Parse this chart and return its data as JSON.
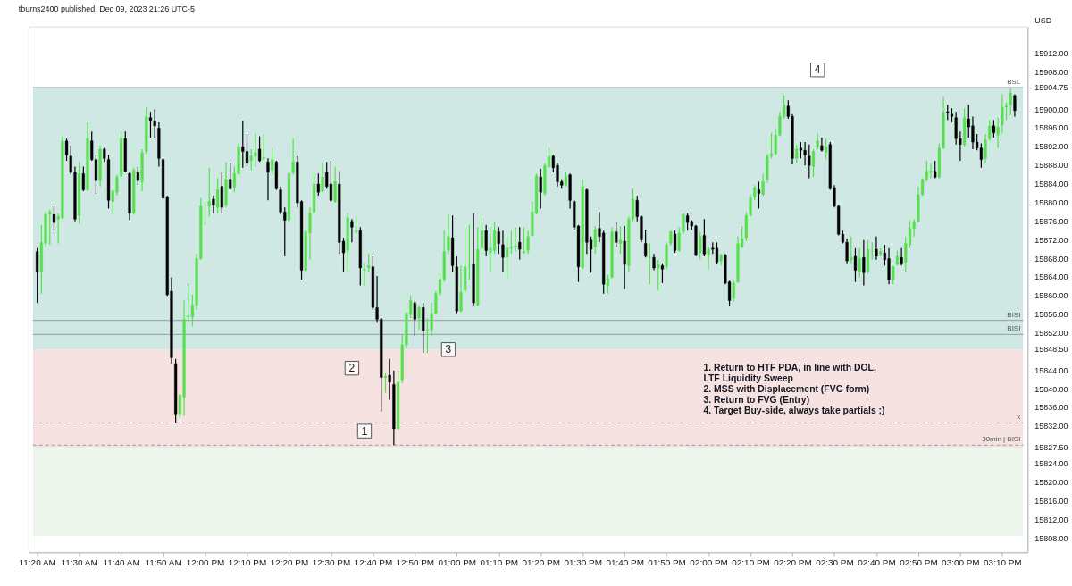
{
  "chart_data": {
    "type": "candlestick",
    "title": "tburns2400 published, Dec 09, 2023 21:26 UTC-5",
    "ylabel": "USD",
    "x": [
      11.3333,
      11.35,
      11.3667,
      11.3833,
      11.4,
      11.4167,
      11.4333,
      11.45,
      11.4667,
      11.4833,
      11.5,
      11.5167,
      11.5333,
      11.55,
      11.5667,
      11.5833,
      11.6,
      11.6167,
      11.6333,
      11.65,
      11.6667,
      11.6833,
      11.7,
      11.7167,
      11.7333,
      11.75,
      11.7667,
      11.7833,
      11.8,
      11.8167,
      11.8333,
      11.85,
      11.8667,
      11.8833,
      11.9,
      11.9167,
      11.9333,
      11.95,
      11.9667,
      11.9833,
      12,
      12.0167,
      12.0333,
      12.05,
      12.0667,
      12.0833,
      12.1,
      12.1167,
      12.1333,
      12.15,
      12.1667,
      12.1833,
      12.2,
      12.2167,
      12.2333,
      12.25,
      12.2667,
      12.2833,
      12.3,
      12.3167,
      12.3333,
      12.35,
      12.3667,
      12.3833,
      12.4,
      12.4167,
      12.4333,
      12.45,
      12.4667,
      12.4833,
      12.5,
      12.5167,
      12.5333,
      12.55,
      12.5667,
      12.5833,
      12.6,
      12.6167,
      12.6333,
      12.65,
      12.6667,
      12.6833,
      12.7,
      12.7167,
      12.7333,
      12.75,
      12.7667,
      12.7833,
      12.8,
      12.8167,
      12.8333,
      12.85,
      12.8667,
      12.8833,
      12.9,
      12.9167,
      12.9333,
      12.95,
      12.9667,
      12.9833,
      13,
      13.0167,
      13.0333,
      13.05,
      13.0667,
      13.0833,
      13.1,
      13.1167,
      13.1333,
      13.15,
      13.1667,
      13.1833,
      13.2,
      13.2167,
      13.2333,
      13.25,
      13.2667,
      13.2833,
      13.3,
      13.3167,
      13.3333,
      13.35,
      13.3667,
      13.3833,
      13.4,
      13.4167,
      13.4333,
      13.45,
      13.4667,
      13.4833,
      13.5,
      13.5167,
      13.5333,
      13.55,
      13.5667,
      13.5833,
      13.6,
      13.6167,
      13.6333,
      13.65,
      13.6667,
      13.6833,
      13.7,
      13.7167,
      13.7333,
      13.75,
      13.7667,
      13.7833,
      13.8,
      13.8167,
      13.8333,
      13.85,
      13.8667,
      13.8833,
      13.9,
      13.9167,
      13.9333,
      13.95,
      13.9667,
      13.9833,
      14,
      14.0167,
      14.0333,
      14.05,
      14.0667,
      14.0833,
      14.1,
      14.1167,
      14.1333,
      14.15,
      14.1667,
      14.1833,
      14.2,
      14.2167,
      14.2333,
      14.25,
      14.2667,
      14.2833,
      14.3,
      14.3167,
      14.3333,
      14.35,
      14.3667,
      14.3833,
      14.4,
      14.4167,
      14.4333,
      14.45,
      14.4667,
      14.4833,
      14.5,
      14.5167,
      14.5333,
      14.55,
      14.5667,
      14.5833,
      14.6,
      14.6167,
      14.6333,
      14.65,
      14.6667,
      14.6833,
      14.7,
      14.7167,
      14.7333,
      14.75,
      14.7667,
      14.7833,
      14.8,
      14.8167,
      14.8333,
      14.85,
      14.8667,
      14.8833,
      14.9,
      14.9167,
      14.9333,
      14.95,
      14.9667,
      14.9833,
      15,
      15.0167,
      15.0333,
      15.05,
      15.0667,
      15.0833,
      15.1,
      15.1167,
      15.1333,
      15.15,
      15.1667,
      15.1833,
      15.2,
      15.2167
    ],
    "ohlc": [
      [
        15869.5,
        15870.25,
        15858.5,
        15865.25
      ],
      [
        15865.25,
        15875.25,
        15860.5,
        15871.5
      ],
      [
        15871.25,
        15878,
        15870.5,
        15877.5
      ],
      [
        15877.5,
        15878.5,
        15871,
        15878
      ],
      [
        15877.5,
        15879.25,
        15874,
        15875.75
      ],
      [
        15876.5,
        15877.75,
        15871.25,
        15877
      ],
      [
        15876.75,
        15894.25,
        15876.5,
        15893.25
      ],
      [
        15893.25,
        15893.75,
        15889,
        15890.25
      ],
      [
        15890,
        15892.25,
        15886,
        15886.5
      ],
      [
        15886.5,
        15887.75,
        15876,
        15876.5
      ],
      [
        15877.25,
        15888.75,
        15875.5,
        15886.25
      ],
      [
        15886.25,
        15887.75,
        15882.5,
        15882.75
      ],
      [
        15882.75,
        15897.25,
        15882.5,
        15893.75
      ],
      [
        15893.25,
        15895.25,
        15889,
        15889.25
      ],
      [
        15889.25,
        15890.25,
        15882,
        15884.75
      ],
      [
        15884.75,
        15892.25,
        15883.5,
        15891.5
      ],
      [
        15891.5,
        15891.75,
        15888.75,
        15889.5
      ],
      [
        15889.25,
        15890.25,
        15878.75,
        15880.5
      ],
      [
        15880.25,
        15882.75,
        15877.5,
        15882.5
      ],
      [
        15882.25,
        15886,
        15881.5,
        15885.5
      ],
      [
        15885.75,
        15895.25,
        15885.25,
        15893.75
      ],
      [
        15893.75,
        15895.25,
        15886.5,
        15886.75
      ],
      [
        15886.25,
        15886.5,
        15876.25,
        15877.75
      ],
      [
        15877.75,
        15887.5,
        15877.5,
        15887
      ],
      [
        15886.5,
        15887.75,
        15883.75,
        15884.75
      ],
      [
        15884.5,
        15891.5,
        15882.5,
        15890.75
      ],
      [
        15891,
        15900.5,
        15890.5,
        15898.5
      ],
      [
        15898.25,
        15899.5,
        15894,
        15897.5
      ],
      [
        15897.5,
        15900,
        15894,
        15896.5
      ],
      [
        15896,
        15897.25,
        15887.75,
        15889.5
      ],
      [
        15889.25,
        15889.5,
        15881,
        15881
      ],
      [
        15881.25,
        15881.5,
        15860,
        15860.25
      ],
      [
        15861,
        15864,
        15845.5,
        15846.75
      ],
      [
        15845.5,
        15846.5,
        15832.75,
        15834.5
      ],
      [
        15834.5,
        15839,
        15833.75,
        15838.75
      ],
      [
        15838.25,
        15859,
        15834.25,
        15855
      ],
      [
        15855.5,
        15862.75,
        15854.5,
        15855.75
      ],
      [
        15855.5,
        15860.25,
        15853.5,
        15858
      ],
      [
        15858,
        15869,
        15857,
        15868
      ],
      [
        15868,
        15881,
        15867.75,
        15879.25
      ],
      [
        15879.5,
        15880.25,
        15875.25,
        15879.5
      ],
      [
        15879.25,
        15887.5,
        15877,
        15880.25
      ],
      [
        15880.75,
        15881.5,
        15877.75,
        15879.5
      ],
      [
        15879,
        15885.25,
        15877.75,
        15882.75
      ],
      [
        15883.5,
        15886.5,
        15877.75,
        15879
      ],
      [
        15879.5,
        15888.75,
        15879,
        15885
      ],
      [
        15885,
        15888.5,
        15882.75,
        15883
      ],
      [
        15883.25,
        15887.75,
        15882.25,
        15886.25
      ],
      [
        15886.25,
        15892.75,
        15886,
        15892
      ],
      [
        15892,
        15897.5,
        15887.5,
        15891
      ],
      [
        15891,
        15894.75,
        15887.75,
        15888.5
      ],
      [
        15889,
        15891.5,
        15887,
        15890
      ],
      [
        15890,
        15895,
        15887.75,
        15890.75
      ],
      [
        15891.5,
        15894.25,
        15888.75,
        15889
      ],
      [
        15889.5,
        15894.75,
        15889,
        15889.75
      ],
      [
        15888.75,
        15889.5,
        15880.5,
        15886.5
      ],
      [
        15887,
        15891.75,
        15886,
        15889.25
      ],
      [
        15888.75,
        15889,
        15882.75,
        15883
      ],
      [
        15882.75,
        15883.5,
        15877.5,
        15878
      ],
      [
        15878,
        15879,
        15868.5,
        15876.25
      ],
      [
        15876.25,
        15886.5,
        15876,
        15886.25
      ],
      [
        15886.5,
        15893.75,
        15886,
        15888.75
      ],
      [
        15888.75,
        15890,
        15879,
        15880
      ],
      [
        15880.25,
        15880.5,
        15863.5,
        15865.5
      ],
      [
        15865.5,
        15874.25,
        15865.25,
        15873.75
      ],
      [
        15873.5,
        15879,
        15867.75,
        15877.75
      ],
      [
        15878,
        15886.75,
        15877.75,
        15884
      ],
      [
        15884,
        15886.25,
        15881.5,
        15882.25
      ],
      [
        15882.5,
        15888.75,
        15882.25,
        15885.5
      ],
      [
        15886.5,
        15888.75,
        15883,
        15883.5
      ],
      [
        15884,
        15889,
        15880.25,
        15880.5
      ],
      [
        15880.25,
        15887.75,
        15880,
        15884.5
      ],
      [
        15884,
        15886.75,
        15869,
        15871.5
      ],
      [
        15871.75,
        15872.5,
        15865.25,
        15869.25
      ],
      [
        15869.75,
        15877.75,
        15865.25,
        15876.75
      ],
      [
        15876,
        15876.5,
        15871.5,
        15874.75
      ],
      [
        15873.75,
        15877,
        15873.25,
        15874
      ],
      [
        15874,
        15874.75,
        15862.25,
        15866
      ],
      [
        15865.5,
        15867,
        15862.25,
        15865.75
      ],
      [
        15866,
        15869,
        15865.25,
        15866.5
      ],
      [
        15866.25,
        15868.5,
        15857,
        15857.5
      ],
      [
        15857.5,
        15864.25,
        15854.25,
        15855
      ],
      [
        15855,
        15855.25,
        15835.25,
        15842.5
      ],
      [
        15842.5,
        15843.5,
        15839.25,
        15842.75
      ],
      [
        15843,
        15846.5,
        15837.75,
        15841.5
      ],
      [
        15841,
        15844,
        15828,
        15831.5
      ],
      [
        15831.5,
        15844,
        15831.25,
        15841.5
      ],
      [
        15842,
        15851.75,
        15841.25,
        15849.5
      ],
      [
        15849.5,
        15856.5,
        15848.75,
        15856.25
      ],
      [
        15856,
        15860,
        15855.25,
        15859
      ],
      [
        15858.5,
        15859,
        15851.5,
        15855
      ],
      [
        15855.25,
        15858,
        15852.75,
        15857.5
      ],
      [
        15857.5,
        15858.5,
        15847.75,
        15852.5
      ],
      [
        15852.5,
        15855.25,
        15847.75,
        15852.75
      ],
      [
        15852.75,
        15858.5,
        15851.5,
        15856.25
      ],
      [
        15856.25,
        15861,
        15856,
        15860.5
      ],
      [
        15860.5,
        15865,
        15860,
        15863.5
      ],
      [
        15863.5,
        15874,
        15863,
        15869.5
      ],
      [
        15869.75,
        15877.5,
        15869,
        15872.75
      ],
      [
        15872.5,
        15877.25,
        15865.25,
        15866.5
      ],
      [
        15866.25,
        15868.5,
        15856.25,
        15856.75
      ],
      [
        15856.75,
        15866.5,
        15856.5,
        15860.75
      ],
      [
        15861.25,
        15874.75,
        15860.75,
        15866.25
      ],
      [
        15866.5,
        15875.25,
        15863.5,
        15866.5
      ],
      [
        15866.75,
        15877.75,
        15858,
        15858.5
      ],
      [
        15858,
        15874.75,
        15857.75,
        15870
      ],
      [
        15870.25,
        15876.75,
        15869,
        15874
      ],
      [
        15874,
        15875.25,
        15868.5,
        15869.75
      ],
      [
        15869.25,
        15874.75,
        15865.25,
        15870.25
      ],
      [
        15869.75,
        15876,
        15869,
        15874
      ],
      [
        15873.75,
        15874.75,
        15869,
        15871.25
      ],
      [
        15871,
        15874,
        15865.25,
        15868.25
      ],
      [
        15868.25,
        15872.75,
        15863.75,
        15870.25
      ],
      [
        15870.25,
        15874,
        15869,
        15870.5
      ],
      [
        15870.5,
        15874.75,
        15869.5,
        15870.75
      ],
      [
        15871.5,
        15874.75,
        15867.75,
        15870
      ],
      [
        15869.25,
        15874.75,
        15869,
        15869.5
      ],
      [
        15869.75,
        15874,
        15869,
        15872.75
      ],
      [
        15873,
        15880.25,
        15872.75,
        15878
      ],
      [
        15877.75,
        15886.25,
        15877.5,
        15885.75
      ],
      [
        15885.5,
        15887.25,
        15878.75,
        15882.25
      ],
      [
        15882,
        15888.5,
        15881.5,
        15888
      ],
      [
        15887.75,
        15891.75,
        15887.5,
        15890
      ],
      [
        15890,
        15890.25,
        15886.5,
        15887.5
      ],
      [
        15888,
        15888.5,
        15883.5,
        15884.5
      ],
      [
        15884.5,
        15885,
        15883,
        15883.75
      ],
      [
        15883.75,
        15886.75,
        15883.5,
        15885.75
      ],
      [
        15886,
        15886.25,
        15878.75,
        15880.5
      ],
      [
        15880.25,
        15880.5,
        15874.25,
        15874.75
      ],
      [
        15875,
        15875.25,
        15863,
        15866.25
      ],
      [
        15866,
        15885,
        15865.75,
        15883.5
      ],
      [
        15882.75,
        15883,
        15869,
        15871.5
      ],
      [
        15872,
        15872.75,
        15865,
        15870
      ],
      [
        15870.5,
        15875,
        15869,
        15874.25
      ],
      [
        15874.5,
        15878,
        15871.5,
        15872.75
      ],
      [
        15873.5,
        15874,
        15860.5,
        15862.5
      ],
      [
        15862.25,
        15864.5,
        15860.5,
        15863.75
      ],
      [
        15864,
        15874.75,
        15863.75,
        15873.75
      ],
      [
        15873.75,
        15875.75,
        15870.5,
        15871.5
      ],
      [
        15871.25,
        15875,
        15869,
        15872
      ],
      [
        15871.75,
        15875,
        15861.5,
        15866.75
      ],
      [
        15866.5,
        15877,
        15865.25,
        15876.5
      ],
      [
        15876.5,
        15883,
        15876,
        15880.75
      ],
      [
        15880.5,
        15881.5,
        15876,
        15877
      ],
      [
        15877,
        15877.25,
        15871.5,
        15872
      ],
      [
        15871.25,
        15874.25,
        15868.25,
        15868.5
      ],
      [
        15868.25,
        15871.25,
        15862.5,
        15868.25
      ],
      [
        15868.25,
        15869,
        15865.5,
        15866
      ],
      [
        15866,
        15867.75,
        15861.25,
        15866.75
      ],
      [
        15866.5,
        15867,
        15862.75,
        15865.75
      ],
      [
        15866.25,
        15871.5,
        15865.75,
        15871
      ],
      [
        15871.25,
        15874,
        15870.75,
        15873.75
      ],
      [
        15873.25,
        15874,
        15869.25,
        15869.75
      ],
      [
        15869.75,
        15874.75,
        15869.5,
        15873.5
      ],
      [
        15873.75,
        15877.75,
        15873.25,
        15877.5
      ],
      [
        15877.25,
        15877.75,
        15874,
        15875.75
      ],
      [
        15876,
        15876.25,
        15874.25,
        15875
      ],
      [
        15875,
        15875.25,
        15868.5,
        15868.75
      ],
      [
        15869.25,
        15873.75,
        15867.75,
        15872.75
      ],
      [
        15873,
        15876.5,
        15868.5,
        15869
      ],
      [
        15868.75,
        15870.5,
        15865.75,
        15870
      ],
      [
        15870.25,
        15871.5,
        15869,
        15870
      ],
      [
        15870.25,
        15871.5,
        15866.75,
        15867.25
      ],
      [
        15867.5,
        15869,
        15866.5,
        15868.75
      ],
      [
        15868.75,
        15869,
        15862.5,
        15862.75
      ],
      [
        15863,
        15863.25,
        15857.75,
        15859
      ],
      [
        15859.5,
        15863.25,
        15858.75,
        15862.75
      ],
      [
        15863,
        15872.75,
        15862.75,
        15871.25
      ],
      [
        15870.5,
        15875,
        15870.25,
        15872.25
      ],
      [
        15872.5,
        15878,
        15871.75,
        15877.25
      ],
      [
        15877.25,
        15881.75,
        15877,
        15881
      ],
      [
        15881.25,
        15883.75,
        15880.5,
        15883.25
      ],
      [
        15882.75,
        15884.5,
        15878.75,
        15882
      ],
      [
        15881.75,
        15886.25,
        15881.5,
        15884.5
      ],
      [
        15885,
        15890.5,
        15884.25,
        15890
      ],
      [
        15890,
        15895,
        15889.5,
        15890.5
      ],
      [
        15890.5,
        15896,
        15890.25,
        15894.5
      ],
      [
        15894.5,
        15899.5,
        15894.25,
        15898.5
      ],
      [
        15898.5,
        15903,
        15898,
        15901
      ],
      [
        15900.75,
        15902,
        15898,
        15898.5
      ],
      [
        15898.5,
        15899,
        15888.25,
        15889.5
      ],
      [
        15889.5,
        15892.5,
        15888.5,
        15891.5
      ],
      [
        15891.75,
        15893,
        15889.5,
        15891.25
      ],
      [
        15891.25,
        15893,
        15888,
        15890.25
      ],
      [
        15890,
        15892.5,
        15885.25,
        15888
      ],
      [
        15887.75,
        15891.5,
        15885.5,
        15891
      ],
      [
        15892,
        15895,
        15891.5,
        15893.25
      ],
      [
        15892.25,
        15894,
        15891,
        15891.25
      ],
      [
        15890.75,
        15893.75,
        15889.25,
        15892
      ],
      [
        15892.5,
        15893,
        15882.75,
        15883
      ],
      [
        15883.25,
        15883.75,
        15879,
        15879.25
      ],
      [
        15879.25,
        15879.5,
        15873,
        15873.25
      ],
      [
        15873.25,
        15874,
        15871.25,
        15871.5
      ],
      [
        15871.5,
        15872.25,
        15867,
        15867.5
      ],
      [
        15867.75,
        15872.75,
        15867,
        15868.25
      ],
      [
        15868.5,
        15870.25,
        15863,
        15865.5
      ],
      [
        15865.25,
        15870.25,
        15864,
        15868
      ],
      [
        15868.25,
        15872,
        15862.25,
        15865
      ],
      [
        15865.25,
        15872,
        15864.75,
        15870
      ],
      [
        15869.5,
        15871.5,
        15867.75,
        15869.5
      ],
      [
        15870,
        15872.75,
        15867.75,
        15868.5
      ],
      [
        15869,
        15870.25,
        15868.5,
        15869.5
      ],
      [
        15869.25,
        15871,
        15866.5,
        15867.75
      ],
      [
        15868,
        15870.25,
        15862.5,
        15863.5
      ],
      [
        15863.5,
        15866.5,
        15862.5,
        15866.25
      ],
      [
        15866.75,
        15869.75,
        15866.5,
        15868.5
      ],
      [
        15868.25,
        15870.25,
        15866.5,
        15867
      ],
      [
        15867.25,
        15872.75,
        15865.25,
        15871.25
      ],
      [
        15871,
        15876.25,
        15870.25,
        15874.5
      ],
      [
        15874.5,
        15876.5,
        15872.75,
        15876
      ],
      [
        15876,
        15883.5,
        15875.75,
        15881.75
      ],
      [
        15881.75,
        15885.25,
        15881.5,
        15885
      ],
      [
        15885,
        15889,
        15884.5,
        15886.75
      ],
      [
        15886.5,
        15888.5,
        15885.25,
        15886.75
      ],
      [
        15886.75,
        15889,
        15885.25,
        15885.5
      ],
      [
        15885.5,
        15892.75,
        15885.25,
        15891.75
      ],
      [
        15891.75,
        15902.75,
        15891.5,
        15899.5
      ],
      [
        15899.5,
        15901,
        15897.75,
        15899.25
      ],
      [
        15899,
        15900.25,
        15897.25,
        15898.5
      ],
      [
        15898.25,
        15899.5,
        15892.5,
        15893.75
      ],
      [
        15893.75,
        15895.25,
        15889,
        15892.5
      ],
      [
        15892.5,
        15900.25,
        15892,
        15898.25
      ],
      [
        15898,
        15901,
        15894,
        15896.25
      ],
      [
        15896.5,
        15898.5,
        15891.5,
        15893
      ],
      [
        15893,
        15894.75,
        15891.25,
        15891.75
      ],
      [
        15891.75,
        15892.75,
        15887.5,
        15889.25
      ],
      [
        15889.5,
        15894.75,
        15888.5,
        15893.5
      ],
      [
        15893.75,
        15897.75,
        15893.25,
        15896.5
      ],
      [
        15896.5,
        15897.75,
        15894,
        15895
      ],
      [
        15894.5,
        15898.25,
        15891.75,
        15896.25
      ],
      [
        15896.75,
        15903.25,
        15895,
        15900.5
      ],
      [
        15900.5,
        15901.5,
        15897.75,
        15900.75
      ],
      [
        15901,
        15904.5,
        15898.75,
        15903.5
      ],
      [
        15903,
        15903.25,
        15898.5,
        15899.75
      ]
    ],
    "xlim": [
      11.316,
      15.25
    ],
    "xticks": [
      {
        "value": 11.3333,
        "label": "11:20 AM"
      },
      {
        "value": 11.5,
        "label": "11:30 AM"
      },
      {
        "value": 11.6667,
        "label": "11:40 AM"
      },
      {
        "value": 11.8333,
        "label": "11:50 AM"
      },
      {
        "value": 12,
        "label": "12:00 PM"
      },
      {
        "value": 12.1667,
        "label": "12:10 PM"
      },
      {
        "value": 12.3333,
        "label": "12:20 PM"
      },
      {
        "value": 12.5,
        "label": "12:30 PM"
      },
      {
        "value": 12.6667,
        "label": "12:40 PM"
      },
      {
        "value": 12.8333,
        "label": "12:50 PM"
      },
      {
        "value": 13,
        "label": "01:00 PM"
      },
      {
        "value": 13.1667,
        "label": "01:10 PM"
      },
      {
        "value": 13.3333,
        "label": "01:20 PM"
      },
      {
        "value": 13.5,
        "label": "01:30 PM"
      },
      {
        "value": 13.6667,
        "label": "01:40 PM"
      },
      {
        "value": 13.8333,
        "label": "01:50 PM"
      },
      {
        "value": 14,
        "label": "02:00 PM"
      },
      {
        "value": 14.1667,
        "label": "02:10 PM"
      },
      {
        "value": 14.3333,
        "label": "02:20 PM"
      },
      {
        "value": 14.5,
        "label": "02:30 PM"
      },
      {
        "value": 14.6667,
        "label": "02:40 PM"
      },
      {
        "value": 14.8333,
        "label": "02:50 PM"
      },
      {
        "value": 15,
        "label": "03:00 PM"
      },
      {
        "value": 15.1667,
        "label": "03:10 PM"
      }
    ],
    "ylim": [
      15805,
      15917.8
    ],
    "yticks": [
      {
        "value": 15912,
        "label": "15912.00"
      },
      {
        "value": 15908,
        "label": "15908.00"
      },
      {
        "value": 15904.75,
        "label": "15904.75"
      },
      {
        "value": 15900,
        "label": "15900.00"
      },
      {
        "value": 15896,
        "label": "15896.00"
      },
      {
        "value": 15892,
        "label": "15892.00"
      },
      {
        "value": 15888,
        "label": "15888.00"
      },
      {
        "value": 15884,
        "label": "15884.00"
      },
      {
        "value": 15880,
        "label": "15880.00"
      },
      {
        "value": 15876,
        "label": "15876.00"
      },
      {
        "value": 15872,
        "label": "15872.00"
      },
      {
        "value": 15868,
        "label": "15868.00"
      },
      {
        "value": 15864,
        "label": "15864.00"
      },
      {
        "value": 15860,
        "label": "15860.00"
      },
      {
        "value": 15856,
        "label": "15856.00"
      },
      {
        "value": 15852,
        "label": "15852.00"
      },
      {
        "value": 15848.5,
        "label": "15848.50"
      },
      {
        "value": 15844,
        "label": "15844.00"
      },
      {
        "value": 15840,
        "label": "15840.00"
      },
      {
        "value": 15836,
        "label": "15836.00"
      },
      {
        "value": 15832,
        "label": "15832.00"
      },
      {
        "value": 15827.5,
        "label": "15827.50"
      },
      {
        "value": 15824,
        "label": "15824.00"
      },
      {
        "value": 15820,
        "label": "15820.00"
      },
      {
        "value": 15816,
        "label": "15816.00"
      },
      {
        "value": 15812,
        "label": "15812.00"
      },
      {
        "value": 15808,
        "label": "15808.00"
      }
    ],
    "grid": false,
    "bands": [
      {
        "axis": "y",
        "from": 15808.5,
        "to": 15848.5,
        "color": "#edf5ec"
      },
      {
        "axis": "y",
        "from": 15848.5,
        "to": 15904.75,
        "color": "#d0e8e4"
      },
      {
        "axis": "y",
        "from": 15827.5,
        "to": 15848.5,
        "color": "#f6e2e0"
      }
    ],
    "ref_lines": [
      {
        "axis": "y",
        "value": 15904.75,
        "label": "BSL",
        "color": "#b2b5be",
        "line_style": "solid"
      },
      {
        "axis": "y",
        "value": 15832.75,
        "label": "x",
        "color": "#9598a1",
        "line_style": "dashed"
      },
      {
        "axis": "y",
        "value": 15828,
        "label": "30min | BISI",
        "color": "#9598a1",
        "line_style": "dashed"
      },
      {
        "axis": "y",
        "value": 15854.75,
        "label": "BISI",
        "color": "#9598a1",
        "line_style": "solid"
      },
      {
        "axis": "y",
        "value": 15851.75,
        "label": "BISI",
        "color": "#9598a1",
        "line_style": "solid"
      }
    ],
    "annotations": [
      {
        "text": "1",
        "x": 12.6333,
        "y": 15831
      },
      {
        "text": "2",
        "x": 12.5833,
        "y": 15844.5
      },
      {
        "text": "3",
        "x": 12.9667,
        "y": 15848.5
      },
      {
        "text": "4",
        "x": 14.4333,
        "y": 15908.5
      },
      "1. Return to HTF PDA, in line with DOL,\nLTF Liquidity Sweep\n\n2. MSS with Displacement (FVG form)\n\n3. Return to FVG (Entry)\n\n4. Target Buy-side, always take partials ;)"
    ]
  }
}
